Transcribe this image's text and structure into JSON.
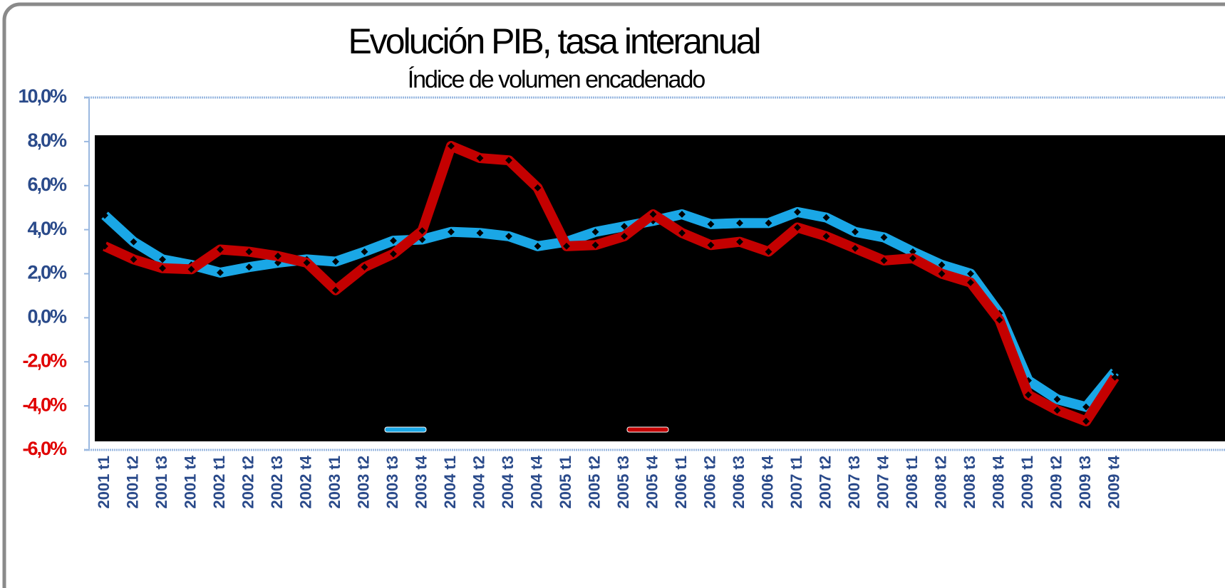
{
  "chart_data": {
    "type": "line",
    "title": "Evolución PIB, tasa interanual",
    "subtitle": "Índice de volumen encadenado",
    "categories": [
      "2001 t1",
      "2001 t2",
      "2001 t3",
      "2001 t4",
      "2002 t1",
      "2002 t2",
      "2002 t3",
      "2002 t4",
      "2003 t1",
      "2003 t2",
      "2003 t3",
      "2003 t4",
      "2004 t1",
      "2004 t2",
      "2004 t3",
      "2004 t4",
      "2005 t1",
      "2005 t2",
      "2005 t3",
      "2005 t4",
      "2006 t1",
      "2006 t2",
      "2006 t3",
      "2006 t4",
      "2007 t1",
      "2007 t2",
      "2007 t3",
      "2007 t4",
      "2008 t1",
      "2008 t2",
      "2008 t3",
      "2008 t4",
      "2009 t1",
      "2009 t2",
      "2009 t3",
      "2009 t4"
    ],
    "series": [
      {
        "color": "#1aa7e6",
        "values": [
          4.65,
          3.45,
          2.65,
          2.4,
          2.05,
          2.3,
          2.5,
          2.65,
          2.55,
          3.0,
          3.5,
          3.55,
          3.9,
          3.85,
          3.7,
          3.25,
          3.45,
          3.9,
          4.15,
          4.4,
          4.7,
          4.25,
          4.3,
          4.3,
          4.8,
          4.55,
          3.9,
          3.65,
          3.0,
          2.4,
          2.0,
          0.2,
          -2.85,
          -3.7,
          -4.05,
          -2.45
        ]
      },
      {
        "color": "#c40000",
        "values": [
          3.25,
          2.65,
          2.25,
          2.2,
          3.1,
          3.0,
          2.8,
          2.5,
          1.25,
          2.3,
          2.9,
          3.95,
          7.8,
          7.25,
          7.15,
          5.9,
          3.25,
          3.3,
          3.7,
          4.7,
          3.85,
          3.3,
          3.45,
          3.0,
          4.1,
          3.7,
          3.15,
          2.6,
          2.7,
          2.0,
          1.6,
          -0.1,
          -3.5,
          -4.2,
          -4.7,
          -2.7
        ]
      }
    ],
    "ylim": [
      -6,
      10
    ],
    "yticks": [
      {
        "value": -6,
        "label": "-6,0%"
      },
      {
        "value": -4,
        "label": "-4,0%"
      },
      {
        "value": -2,
        "label": "-2,0%"
      },
      {
        "value": 0,
        "label": "0,0%"
      },
      {
        "value": 2,
        "label": "2,0%"
      },
      {
        "value": 4,
        "label": "4,0%"
      },
      {
        "value": 6,
        "label": "6,0%"
      },
      {
        "value": 8,
        "label": "8,0%"
      },
      {
        "value": 10,
        "label": "10,0%"
      }
    ],
    "tick_color": "#2a4a8a",
    "negative_tick_color": "#e00000",
    "plot_background": "#000000",
    "grid": false
  }
}
